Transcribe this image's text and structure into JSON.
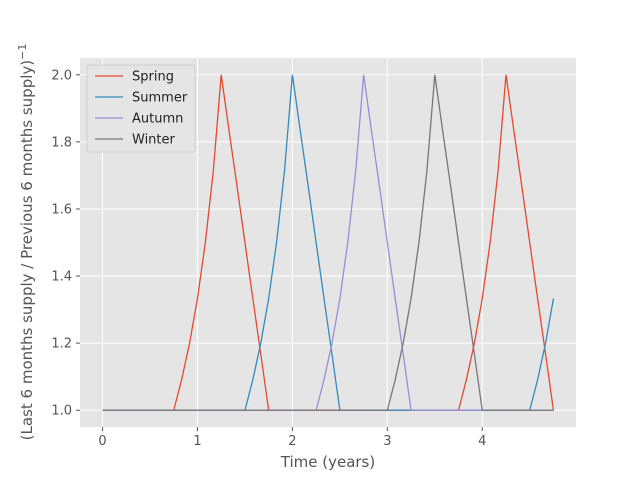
{
  "chart_data": {
    "type": "line",
    "style": "ggplot",
    "xlabel": "Time (years)",
    "ylabel_main": "(Last 6 months supply / Previous 6 months supply)",
    "ylabel_sup": "−1",
    "xlim": [
      -0.2375,
      4.9875
    ],
    "ylim": [
      0.95,
      2.05
    ],
    "xticks": [
      0,
      1,
      2,
      3,
      4
    ],
    "yticks": [
      1.0,
      1.2,
      1.4,
      1.6,
      1.8,
      2.0
    ],
    "xtick_labels": [
      "0",
      "1",
      "2",
      "3",
      "4"
    ],
    "ytick_labels": [
      "1.0",
      "1.2",
      "1.4",
      "1.6",
      "1.8",
      "2.0"
    ],
    "grid": true,
    "legend_position": "upper-left",
    "series": [
      {
        "name": "Spring",
        "color": "#E24A33",
        "x": [
          0,
          0.75,
          0.833,
          0.917,
          1.0,
          1.083,
          1.167,
          1.25,
          1.333,
          1.417,
          1.5,
          1.583,
          1.667,
          1.75,
          3.75,
          3.833,
          3.917,
          4.0,
          4.083,
          4.167,
          4.25,
          4.333,
          4.417,
          4.5,
          4.583,
          4.667,
          4.75
        ],
        "y": [
          1.0,
          1.0,
          1.091,
          1.2,
          1.333,
          1.5,
          1.714,
          2.0,
          1.833,
          1.667,
          1.5,
          1.333,
          1.167,
          1.0,
          1.0,
          1.091,
          1.2,
          1.333,
          1.5,
          1.714,
          2.0,
          1.833,
          1.667,
          1.5,
          1.333,
          1.167,
          1.0
        ]
      },
      {
        "name": "Summer",
        "color": "#348ABD",
        "x": [
          0,
          1.5,
          1.583,
          1.667,
          1.75,
          1.833,
          1.917,
          2.0,
          2.083,
          2.167,
          2.25,
          2.333,
          2.417,
          2.5,
          4.5,
          4.583,
          4.667,
          4.75
        ],
        "y": [
          1.0,
          1.0,
          1.091,
          1.2,
          1.333,
          1.5,
          1.714,
          2.0,
          1.833,
          1.667,
          1.5,
          1.333,
          1.167,
          1.0,
          1.0,
          1.091,
          1.2,
          1.333
        ]
      },
      {
        "name": "Autumn",
        "color": "#988ED5",
        "x": [
          0,
          2.25,
          2.333,
          2.417,
          2.5,
          2.583,
          2.667,
          2.75,
          2.833,
          2.917,
          3.0,
          3.083,
          3.167,
          3.25,
          4.75
        ],
        "y": [
          1.0,
          1.0,
          1.091,
          1.2,
          1.333,
          1.5,
          1.714,
          2.0,
          1.833,
          1.667,
          1.5,
          1.333,
          1.167,
          1.0,
          1.0
        ]
      },
      {
        "name": "Winter",
        "color": "#777777",
        "x": [
          0,
          3.0,
          3.083,
          3.167,
          3.25,
          3.333,
          3.417,
          3.5,
          3.583,
          3.667,
          3.75,
          3.833,
          3.917,
          4.0,
          4.75
        ],
        "y": [
          1.0,
          1.0,
          1.091,
          1.2,
          1.333,
          1.5,
          1.714,
          2.0,
          1.833,
          1.667,
          1.5,
          1.333,
          1.167,
          1.0,
          1.0
        ]
      }
    ]
  }
}
